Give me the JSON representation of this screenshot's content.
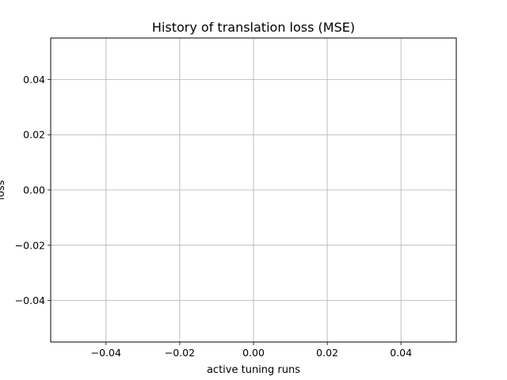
{
  "chart_data": {
    "type": "line",
    "title": "History of translation loss (MSE)",
    "xlabel": "active tuning runs",
    "ylabel": "loss",
    "xlim": [
      -0.055,
      0.055
    ],
    "ylim": [
      -0.055,
      0.055
    ],
    "x_ticks": [
      -0.04,
      -0.02,
      0.0,
      0.02,
      0.04
    ],
    "y_ticks": [
      -0.04,
      -0.02,
      0.0,
      0.02,
      0.04
    ],
    "x_tick_labels": [
      "−0.04",
      "−0.02",
      "0.00",
      "0.02",
      "0.04"
    ],
    "y_tick_labels": [
      "−0.04",
      "−0.02",
      "0.00",
      "0.02",
      "0.04"
    ],
    "grid": true,
    "series": [],
    "colors": {
      "grid": "#b0b0b0",
      "frame": "#000000"
    }
  }
}
